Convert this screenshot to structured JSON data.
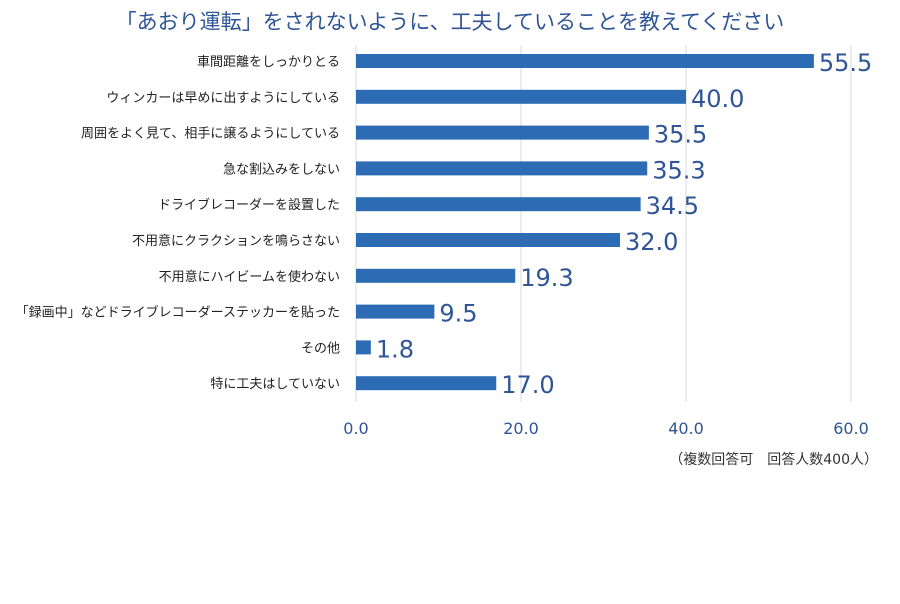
{
  "chart_data": {
    "type": "bar",
    "orientation": "horizontal",
    "title": "「あおり運転」をされないように、工夫していることを教えてください",
    "note": "（複数回答可　回答人数400人）",
    "categories": [
      "車間距離をしっかりとる",
      "ウィンカーは早めに出すようにしている",
      "周囲をよく見て、相手に譲るようにしている",
      "急な割込みをしない",
      "ドライブレコーダーを設置した",
      "不用意にクラクションを鳴らさない",
      "不用意にハイビームを使わない",
      "「録画中」などドライブレコーダーステッカーを貼った",
      "その他",
      "特に工夫はしていない"
    ],
    "values": [
      55.5,
      40.0,
      35.5,
      35.3,
      34.5,
      32.0,
      19.3,
      9.5,
      1.8,
      17.0
    ],
    "value_labels": [
      "55.5",
      "40.0",
      "35.5",
      "35.3",
      "34.5",
      "32.0",
      "19.3",
      "9.5",
      "1.8",
      "17.0"
    ],
    "xlim": [
      0,
      60
    ],
    "xticks": [
      "0.0",
      "20.0",
      "40.0",
      "60.0"
    ],
    "xtick_values": [
      0,
      20,
      40,
      60
    ],
    "grid": true,
    "legend": "none",
    "colors": {
      "bar": "#2e6bb5",
      "title": "#2f5597",
      "value_label": "#2f5597",
      "tick_label": "#2f5597",
      "category_label": "#222222",
      "grid": "#d9d9d9"
    }
  }
}
